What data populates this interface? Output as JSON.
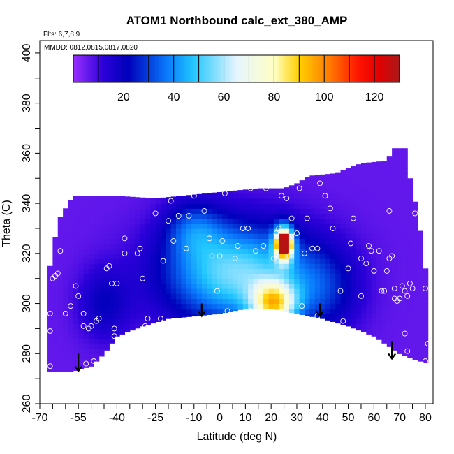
{
  "chart_data": {
    "type": "heatmap",
    "title": "ATOM1 Northbound calc_ext_380_AMP",
    "annotations": {
      "flights": "Flts: 6,7,8,9",
      "dates": "MMDD: 0812,0815,0817,0820"
    },
    "xlabel": "Latitude (deg N)",
    "ylabel": "Theta (C)",
    "xlim": [
      -70,
      83
    ],
    "ylim": [
      260,
      405
    ],
    "x_tick_labels": [
      {
        "value": -70,
        "label": "-70"
      },
      {
        "value": -55,
        "label": "-55"
      },
      {
        "value": -40,
        "label": "-40"
      },
      {
        "value": -25,
        "label": "-25"
      },
      {
        "value": -10,
        "label": "-10"
      },
      {
        "value": 0,
        "label": "0"
      },
      {
        "value": 10,
        "label": "10"
      },
      {
        "value": 20,
        "label": "20"
      },
      {
        "value": 30,
        "label": "30"
      },
      {
        "value": 40,
        "label": "40"
      },
      {
        "value": 50,
        "label": "50"
      },
      {
        "value": 60,
        "label": "60"
      },
      {
        "value": 70,
        "label": "70"
      },
      {
        "value": 80,
        "label": "80"
      }
    ],
    "x_minor_ticks": [
      -65,
      -60,
      -50,
      -45,
      -35,
      -30,
      -20,
      -15,
      -5,
      5,
      15,
      25,
      35,
      45,
      55,
      65,
      75
    ],
    "y_tick_labels": [
      {
        "value": 260,
        "label": "260"
      },
      {
        "value": 280,
        "label": "280"
      },
      {
        "value": 300,
        "label": "300"
      },
      {
        "value": 320,
        "label": "320"
      },
      {
        "value": 340,
        "label": "340"
      },
      {
        "value": 360,
        "label": "360"
      },
      {
        "value": 380,
        "label": "380"
      },
      {
        "value": 400,
        "label": "400"
      }
    ],
    "y_minor_ticks": [
      270,
      290,
      310,
      330,
      350,
      370,
      390
    ],
    "colorbar": {
      "range": [
        0,
        130
      ],
      "stops": [
        {
          "value": 0,
          "color": "#9b30ff"
        },
        {
          "value": 12,
          "color": "#2a00d8"
        },
        {
          "value": 22,
          "color": "#0000bb"
        },
        {
          "value": 38,
          "color": "#0a7fff"
        },
        {
          "value": 48,
          "color": "#22c7ff"
        },
        {
          "value": 65,
          "color": "#e6f5ff"
        },
        {
          "value": 80,
          "color": "#ffffc4"
        },
        {
          "value": 90,
          "color": "#ffd000"
        },
        {
          "value": 102,
          "color": "#ff7a00"
        },
        {
          "value": 114,
          "color": "#ff1200"
        },
        {
          "value": 122,
          "color": "#e00000"
        },
        {
          "value": 130,
          "color": "#a81a1a"
        }
      ],
      "divisions": [
        10,
        20,
        30,
        40,
        50,
        60,
        70,
        80,
        90,
        100,
        110,
        120
      ],
      "labels": [
        {
          "value": 20,
          "label": "20"
        },
        {
          "value": 40,
          "label": "40"
        },
        {
          "value": 60,
          "label": "60"
        },
        {
          "value": 80,
          "label": "80"
        },
        {
          "value": 100,
          "label": "100"
        },
        {
          "value": 120,
          "label": "120"
        }
      ]
    },
    "top_boundary": [
      [
        -67,
        310
      ],
      [
        -65,
        320
      ],
      [
        -63,
        333
      ],
      [
        -60,
        338
      ],
      [
        -57,
        343
      ],
      [
        -55,
        343
      ],
      [
        -40,
        343
      ],
      [
        -25,
        342
      ],
      [
        -15,
        343
      ],
      [
        -5,
        344
      ],
      [
        5,
        345
      ],
      [
        15,
        346
      ],
      [
        25,
        346
      ],
      [
        30,
        348
      ],
      [
        35,
        351
      ],
      [
        45,
        352
      ],
      [
        55,
        356
      ],
      [
        65,
        357
      ],
      [
        68,
        362
      ],
      [
        72,
        362
      ],
      [
        74,
        350
      ],
      [
        77,
        336
      ],
      [
        79,
        322
      ],
      [
        81,
        306
      ],
      [
        81,
        285
      ],
      [
        81,
        275
      ]
    ],
    "bottom_boundary": [
      [
        -67,
        273
      ],
      [
        -57,
        273
      ],
      [
        -50,
        275
      ],
      [
        -45,
        280
      ],
      [
        -40,
        287
      ],
      [
        -30,
        291
      ],
      [
        -20,
        294
      ],
      [
        -10,
        295
      ],
      [
        0,
        296
      ],
      [
        10,
        298
      ],
      [
        20,
        298
      ],
      [
        30,
        296
      ],
      [
        40,
        294
      ],
      [
        50,
        291
      ],
      [
        60,
        287
      ],
      [
        70,
        280
      ],
      [
        75,
        278
      ],
      [
        81,
        276
      ]
    ],
    "features": [
      {
        "name": "equatorial-tropical band",
        "x": 7,
        "y": 312,
        "sx": 20,
        "sy": 14,
        "value": 50
      },
      {
        "name": "core upper column",
        "x": 25,
        "y": 324,
        "sx": 2.5,
        "sy": 5,
        "value": 80
      },
      {
        "name": "core peak",
        "x": 25,
        "y": 324,
        "sx": 1.6,
        "sy": 2.2,
        "value": 120
      },
      {
        "name": "lower maximum",
        "x": 21,
        "y": 300,
        "sx": 6,
        "sy": 6,
        "value": 60
      }
    ],
    "observations": [
      [
        -66,
        275
      ],
      [
        -66,
        289
      ],
      [
        -66,
        296
      ],
      [
        -65,
        310
      ],
      [
        -64,
        311
      ],
      [
        -63,
        312
      ],
      [
        -62,
        321
      ],
      [
        -60,
        296
      ],
      [
        -58,
        299
      ],
      [
        -56,
        307
      ],
      [
        -55,
        303
      ],
      [
        -53,
        296
      ],
      [
        -53,
        291
      ],
      [
        -51,
        290
      ],
      [
        -50,
        291
      ],
      [
        -48,
        293
      ],
      [
        -52,
        276
      ],
      [
        -49,
        277
      ],
      [
        -47,
        294
      ],
      [
        -44,
        314
      ],
      [
        -43,
        315
      ],
      [
        -42,
        308
      ],
      [
        -41,
        287
      ],
      [
        -41,
        290
      ],
      [
        -40,
        308
      ],
      [
        -37,
        320
      ],
      [
        -37,
        326
      ],
      [
        -32,
        320
      ],
      [
        -31,
        322
      ],
      [
        -30,
        310
      ],
      [
        -29,
        291
      ],
      [
        -28,
        294
      ],
      [
        -25,
        336
      ],
      [
        -23,
        294
      ],
      [
        -22,
        317
      ],
      [
        -20,
        333
      ],
      [
        -19,
        341
      ],
      [
        -18,
        325
      ],
      [
        -16,
        335
      ],
      [
        -15,
        348
      ],
      [
        -13,
        322
      ],
      [
        -12,
        335
      ],
      [
        -10,
        343
      ],
      [
        -9,
        346
      ],
      [
        -6,
        337
      ],
      [
        -4,
        326
      ],
      [
        -3,
        319
      ],
      [
        -1,
        305
      ],
      [
        0,
        319
      ],
      [
        1,
        325
      ],
      [
        2,
        344
      ],
      [
        3,
        297
      ],
      [
        6,
        318
      ],
      [
        7,
        323
      ],
      [
        9,
        330
      ],
      [
        11,
        330
      ],
      [
        12,
        297
      ],
      [
        12,
        346
      ],
      [
        14,
        321
      ],
      [
        17,
        323
      ],
      [
        18,
        346
      ],
      [
        21,
        318
      ],
      [
        22,
        328
      ],
      [
        23,
        330
      ],
      [
        24,
        343
      ],
      [
        26,
        342
      ],
      [
        27,
        319
      ],
      [
        28,
        334
      ],
      [
        30,
        328
      ],
      [
        31,
        346
      ],
      [
        32,
        299
      ],
      [
        33,
        320
      ],
      [
        34,
        334
      ],
      [
        36,
        322
      ],
      [
        38,
        295
      ],
      [
        38,
        322
      ],
      [
        39,
        348
      ],
      [
        41,
        343
      ],
      [
        43,
        338
      ],
      [
        44,
        330
      ],
      [
        47,
        305
      ],
      [
        48,
        293
      ],
      [
        50,
        314
      ],
      [
        51,
        324
      ],
      [
        52,
        334
      ],
      [
        55,
        318
      ],
      [
        55,
        303
      ],
      [
        57,
        316
      ],
      [
        58,
        323
      ],
      [
        59,
        321
      ],
      [
        60,
        313
      ],
      [
        62,
        321
      ],
      [
        63,
        305
      ],
      [
        64,
        305
      ],
      [
        65,
        313
      ],
      [
        66,
        337
      ],
      [
        66,
        318
      ],
      [
        67,
        319
      ],
      [
        68,
        306
      ],
      [
        68,
        302
      ],
      [
        69,
        301
      ],
      [
        70,
        302
      ],
      [
        71,
        307
      ],
      [
        72,
        305
      ],
      [
        73,
        303
      ],
      [
        74,
        308
      ],
      [
        75,
        306
      ],
      [
        76,
        336
      ],
      [
        78,
        337
      ],
      [
        80,
        332
      ],
      [
        80,
        325
      ],
      [
        80,
        306
      ],
      [
        79,
        344
      ],
      [
        81,
        284
      ],
      [
        80,
        277
      ],
      [
        73,
        281
      ],
      [
        72,
        288
      ],
      [
        73,
        277
      ]
    ],
    "arrows": [
      {
        "x": -55,
        "y_from": 280,
        "y_to": 273
      },
      {
        "x": -7,
        "y_from": 300,
        "y_to": 295
      },
      {
        "x": 39,
        "y_from": 300,
        "y_to": 295
      },
      {
        "x": 67,
        "y_from": 285,
        "y_to": 278
      }
    ]
  }
}
